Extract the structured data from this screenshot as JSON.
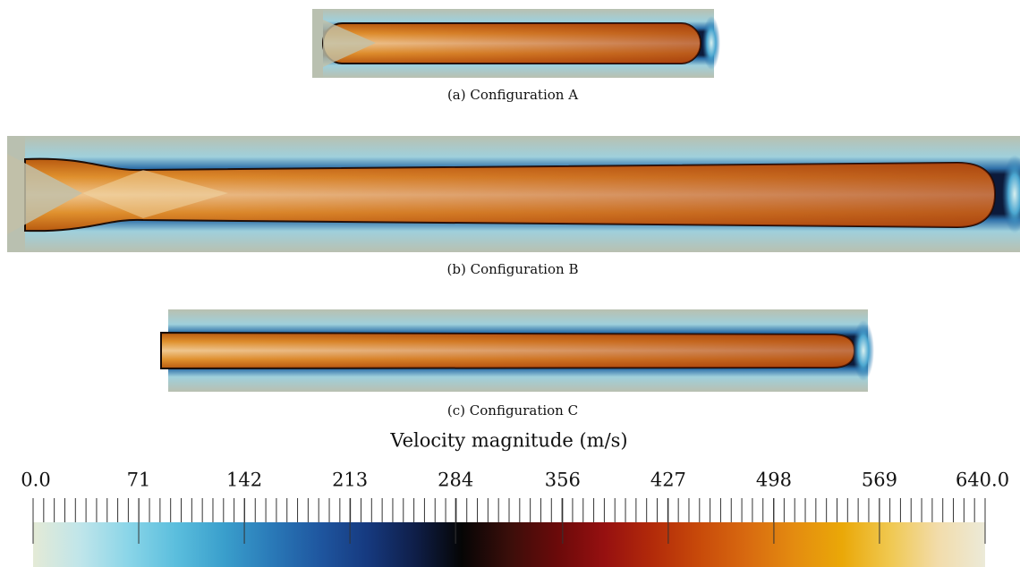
{
  "figures": [
    {
      "caption": "(a) Configuration A"
    },
    {
      "caption": "(b) Configuration B"
    },
    {
      "caption": "(c) Configuration C"
    }
  ],
  "colorbar": {
    "title": "Velocity magnitude (m/s)",
    "lim": [
      0,
      640
    ],
    "ticks": [
      {
        "value": 0,
        "label": "0.0"
      },
      71,
      142,
      213,
      284,
      356,
      427,
      498,
      569,
      {
        "value": 640,
        "label": "640.0"
      }
    ],
    "colors": [
      "#e4ead6",
      "#bfe5ea",
      "#8ad5e8",
      "#5bbedd",
      "#3a9fcc",
      "#2a7ab8",
      "#1f57a0",
      "#163a80",
      "#0f1f4a",
      "#050505",
      "#3a0e0a",
      "#6a0a0a",
      "#961010",
      "#b22a0a",
      "#c84a0a",
      "#d86a10",
      "#e48c10",
      "#eaa808",
      "#f0c850",
      "#f2dcaa",
      "#ecead8"
    ]
  }
}
